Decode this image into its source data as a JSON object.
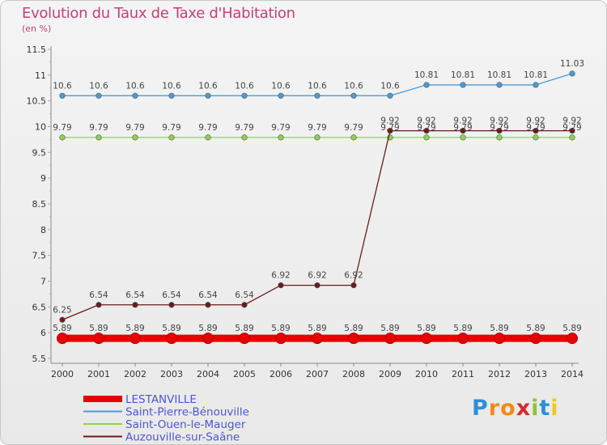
{
  "chart_data": {
    "type": "line",
    "title": "Evolution du Taux de Taxe d'Habitation",
    "subtitle": "(en %)",
    "xlabel": "",
    "ylabel": "(en %)",
    "ylim": [
      5.5,
      11.5
    ],
    "yticks": [
      "5.5",
      "6",
      "6.5",
      "7",
      "7.5",
      "8",
      "8.5",
      "9",
      "9.5",
      "10",
      "10.5",
      "11",
      "11.5"
    ],
    "categories": [
      "2000",
      "2001",
      "2002",
      "2003",
      "2004",
      "2005",
      "2006",
      "2007",
      "2008",
      "2009",
      "2010",
      "2011",
      "2012",
      "2013",
      "2014"
    ],
    "series": [
      {
        "name": "LESTANVILLE",
        "color": "#e60000",
        "values": [
          5.89,
          5.89,
          5.89,
          5.89,
          5.89,
          5.89,
          5.89,
          5.89,
          5.89,
          5.89,
          5.89,
          5.89,
          5.89,
          5.89,
          5.89
        ],
        "labels": [
          "5.89",
          "5.89",
          "5.89",
          "5.89",
          "5.89",
          "5.89",
          "5.89",
          "5.89",
          "5.89",
          "5.89",
          "5.89",
          "5.89",
          "5.89",
          "5.89",
          "5.89"
        ]
      },
      {
        "name": "Saint-Pierre-Bénouville",
        "color": "#4d9ad6",
        "values": [
          10.6,
          10.6,
          10.6,
          10.6,
          10.6,
          10.6,
          10.6,
          10.6,
          10.6,
          10.6,
          10.81,
          10.81,
          10.81,
          10.81,
          11.03
        ],
        "labels": [
          "10.6",
          "10.6",
          "10.6",
          "10.6",
          "10.6",
          "10.6",
          "10.6",
          "10.6",
          "10.6",
          "10.6",
          "10.81",
          "10.81",
          "10.81",
          "10.81",
          "11.03"
        ]
      },
      {
        "name": "Saint-Ouen-le-Mauger",
        "color": "#8fd34a",
        "values": [
          9.79,
          9.79,
          9.79,
          9.79,
          9.79,
          9.79,
          9.79,
          9.79,
          9.79,
          9.79,
          9.79,
          9.79,
          9.79,
          9.79,
          9.79
        ],
        "labels": [
          "9.79",
          "9.79",
          "9.79",
          "9.79",
          "9.79",
          "9.79",
          "9.79",
          "9.79",
          "9.79",
          "9.79",
          "9.79",
          "9.79",
          "9.79",
          "9.79",
          "9.79"
        ]
      },
      {
        "name": "Auzouville-sur-Saâne",
        "color": "#6b1a1a",
        "values": [
          6.25,
          6.54,
          6.54,
          6.54,
          6.54,
          6.54,
          6.92,
          6.92,
          6.92,
          9.92,
          9.92,
          9.92,
          9.92,
          9.92,
          9.92
        ],
        "labels": [
          "6.25",
          "6.54",
          "6.54",
          "6.54",
          "6.54",
          "6.54",
          "6.92",
          "6.92",
          "6.92",
          "9.92",
          "9.92",
          "9.92",
          "9.92",
          "9.92",
          "9.92"
        ]
      }
    ],
    "legend_position": "bottom-left",
    "grid": false
  },
  "brand": {
    "letters": [
      "P",
      "r",
      "o",
      "x",
      "i",
      "t",
      "i"
    ],
    "colors": [
      "#2e8fd6",
      "#f28a1c",
      "#f28a1c",
      "#d62a2a",
      "#8fc23a",
      "#2e8fd6",
      "#f2c81c"
    ]
  }
}
